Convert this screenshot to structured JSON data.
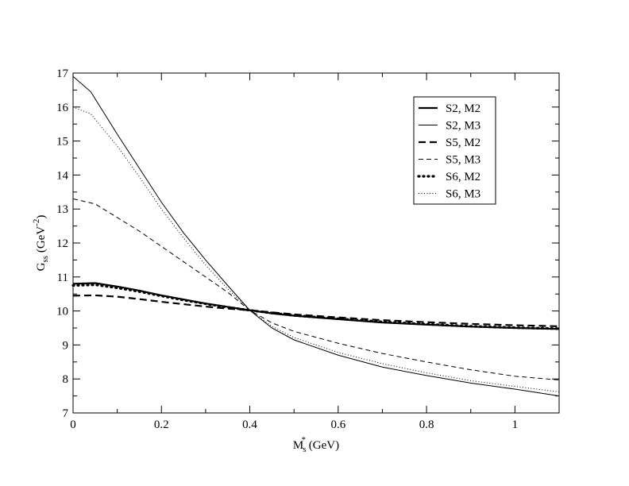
{
  "chart_data": {
    "type": "line",
    "title": "",
    "xlabel": {
      "main": "M",
      "sub": "s",
      "sup": "*",
      "rest": " (GeV)"
    },
    "ylabel": {
      "main": "G",
      "sub": "ss",
      "rest1": " (GeV",
      "sup": "-2",
      "rest2": ")"
    },
    "xlim": [
      0,
      1.1
    ],
    "ylim": [
      7,
      17
    ],
    "xticks": [
      0,
      0.2,
      0.4,
      0.6,
      0.8,
      1
    ],
    "xtick_labels": [
      "0",
      "0.2",
      "0.4",
      "0.6",
      "0.8",
      "1"
    ],
    "yticks": [
      7,
      8,
      9,
      10,
      11,
      12,
      13,
      14,
      15,
      16,
      17
    ],
    "ytick_labels": [
      "7",
      "8",
      "9",
      "10",
      "11",
      "12",
      "13",
      "14",
      "15",
      "16",
      "17"
    ],
    "grid": false,
    "legend_position": "top-right",
    "series": [
      {
        "name": "S2, M2",
        "style": "solid-thick",
        "points": [
          [
            0,
            10.8
          ],
          [
            0.05,
            10.82
          ],
          [
            0.1,
            10.72
          ],
          [
            0.15,
            10.6
          ],
          [
            0.2,
            10.46
          ],
          [
            0.25,
            10.34
          ],
          [
            0.3,
            10.22
          ],
          [
            0.35,
            10.12
          ],
          [
            0.4,
            10.02
          ],
          [
            0.45,
            9.93
          ],
          [
            0.5,
            9.86
          ],
          [
            0.6,
            9.76
          ],
          [
            0.7,
            9.66
          ],
          [
            0.8,
            9.6
          ],
          [
            0.9,
            9.54
          ],
          [
            1.0,
            9.5
          ],
          [
            1.1,
            9.47
          ]
        ]
      },
      {
        "name": "S2, M3",
        "style": "solid-thin",
        "points": [
          [
            0,
            16.9
          ],
          [
            0.04,
            16.45
          ],
          [
            0.1,
            15.2
          ],
          [
            0.15,
            14.2
          ],
          [
            0.2,
            13.2
          ],
          [
            0.25,
            12.3
          ],
          [
            0.3,
            11.5
          ],
          [
            0.35,
            10.75
          ],
          [
            0.4,
            10.02
          ],
          [
            0.45,
            9.5
          ],
          [
            0.5,
            9.15
          ],
          [
            0.6,
            8.7
          ],
          [
            0.7,
            8.35
          ],
          [
            0.8,
            8.1
          ],
          [
            0.9,
            7.88
          ],
          [
            1.0,
            7.7
          ],
          [
            1.1,
            7.5
          ]
        ]
      },
      {
        "name": "S5, M2",
        "style": "dashed-thick",
        "points": [
          [
            0,
            10.45
          ],
          [
            0.05,
            10.46
          ],
          [
            0.1,
            10.42
          ],
          [
            0.15,
            10.35
          ],
          [
            0.2,
            10.27
          ],
          [
            0.25,
            10.2
          ],
          [
            0.3,
            10.13
          ],
          [
            0.35,
            10.07
          ],
          [
            0.4,
            10.02
          ],
          [
            0.45,
            9.96
          ],
          [
            0.5,
            9.9
          ],
          [
            0.6,
            9.81
          ],
          [
            0.7,
            9.73
          ],
          [
            0.8,
            9.67
          ],
          [
            0.9,
            9.62
          ],
          [
            1.0,
            9.58
          ],
          [
            1.1,
            9.55
          ]
        ]
      },
      {
        "name": "S5, M3",
        "style": "dashed-thin",
        "points": [
          [
            0,
            13.3
          ],
          [
            0.05,
            13.15
          ],
          [
            0.1,
            12.75
          ],
          [
            0.15,
            12.35
          ],
          [
            0.2,
            11.9
          ],
          [
            0.25,
            11.45
          ],
          [
            0.3,
            11.0
          ],
          [
            0.35,
            10.55
          ],
          [
            0.4,
            10.02
          ],
          [
            0.45,
            9.65
          ],
          [
            0.5,
            9.4
          ],
          [
            0.6,
            9.05
          ],
          [
            0.7,
            8.75
          ],
          [
            0.8,
            8.5
          ],
          [
            0.9,
            8.27
          ],
          [
            1.0,
            8.08
          ],
          [
            1.1,
            7.97
          ]
        ]
      },
      {
        "name": "S6, M2",
        "style": "dotted-thick",
        "points": [
          [
            0,
            10.75
          ],
          [
            0.05,
            10.77
          ],
          [
            0.1,
            10.68
          ],
          [
            0.15,
            10.57
          ],
          [
            0.2,
            10.44
          ],
          [
            0.25,
            10.32
          ],
          [
            0.3,
            10.21
          ],
          [
            0.35,
            10.11
          ],
          [
            0.4,
            10.02
          ],
          [
            0.45,
            9.94
          ],
          [
            0.5,
            9.87
          ],
          [
            0.6,
            9.77
          ],
          [
            0.7,
            9.68
          ],
          [
            0.8,
            9.61
          ],
          [
            0.9,
            9.55
          ],
          [
            1.0,
            9.51
          ],
          [
            1.1,
            9.48
          ]
        ]
      },
      {
        "name": "S6, M3",
        "style": "dotted-thin",
        "points": [
          [
            0,
            16.0
          ],
          [
            0.04,
            15.8
          ],
          [
            0.1,
            14.85
          ],
          [
            0.15,
            13.95
          ],
          [
            0.2,
            13.0
          ],
          [
            0.25,
            12.15
          ],
          [
            0.3,
            11.35
          ],
          [
            0.35,
            10.65
          ],
          [
            0.4,
            10.02
          ],
          [
            0.45,
            9.55
          ],
          [
            0.5,
            9.22
          ],
          [
            0.6,
            8.78
          ],
          [
            0.7,
            8.45
          ],
          [
            0.8,
            8.18
          ],
          [
            0.9,
            7.95
          ],
          [
            1.0,
            7.78
          ],
          [
            1.1,
            7.62
          ]
        ]
      }
    ]
  }
}
